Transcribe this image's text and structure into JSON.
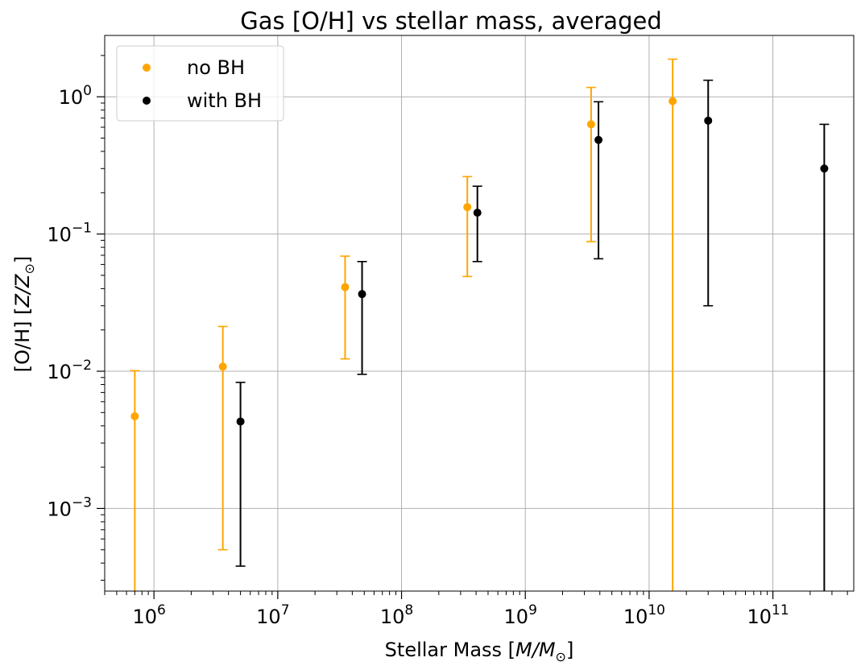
{
  "chart_data": {
    "type": "scatter",
    "title": "Gas [O/H] vs stellar mass, averaged",
    "xlabel": {
      "prefix": "Stellar Mass [",
      "var": "M/M",
      "sub": "⊙",
      "suffix": "]"
    },
    "ylabel": {
      "prefix": "[O/H] [",
      "var": "Z/Z",
      "sub": "⊙",
      "suffix": "]"
    },
    "xscale": "log",
    "yscale": "log",
    "xlim": [
      400000,
      450000000000
    ],
    "ylim": [
      0.00025,
      2.8
    ],
    "x_ticks": [
      {
        "value": 1000000,
        "base": "10",
        "exp": "6"
      },
      {
        "value": 10000000,
        "base": "10",
        "exp": "7"
      },
      {
        "value": 100000000,
        "base": "10",
        "exp": "8"
      },
      {
        "value": 1000000000,
        "base": "10",
        "exp": "9"
      },
      {
        "value": 10000000000,
        "base": "10",
        "exp": "10"
      },
      {
        "value": 100000000000,
        "base": "10",
        "exp": "11"
      }
    ],
    "y_ticks": [
      {
        "value": 0.001,
        "base": "10",
        "exp": "−3"
      },
      {
        "value": 0.01,
        "base": "10",
        "exp": "−2"
      },
      {
        "value": 0.1,
        "base": "10",
        "exp": "−1"
      },
      {
        "value": 1,
        "base": "10",
        "exp": "0"
      }
    ],
    "grid": true,
    "legend": "top-left",
    "series": [
      {
        "name": "no BH",
        "color": "#ffa500",
        "points": [
          {
            "x": 700000,
            "y": 0.0047,
            "ylow": 0.0001,
            "yhigh": 0.0101
          },
          {
            "x": 3600000,
            "y": 0.0108,
            "ylow": 0.0005,
            "yhigh": 0.0212
          },
          {
            "x": 35000000,
            "y": 0.041,
            "ylow": 0.0123,
            "yhigh": 0.069
          },
          {
            "x": 340000000,
            "y": 0.157,
            "ylow": 0.049,
            "yhigh": 0.262
          },
          {
            "x": 3400000000,
            "y": 0.63,
            "ylow": 0.088,
            "yhigh": 1.17
          },
          {
            "x": 15500000000,
            "y": 0.93,
            "ylow": 0.0001,
            "yhigh": 1.88
          }
        ]
      },
      {
        "name": "with BH",
        "color": "#000000",
        "points": [
          {
            "x": 5000000,
            "y": 0.0043,
            "ylow": 0.00038,
            "yhigh": 0.0083
          },
          {
            "x": 48000000,
            "y": 0.0365,
            "ylow": 0.0095,
            "yhigh": 0.063
          },
          {
            "x": 410000000,
            "y": 0.143,
            "ylow": 0.063,
            "yhigh": 0.223
          },
          {
            "x": 3900000000,
            "y": 0.485,
            "ylow": 0.066,
            "yhigh": 0.92
          },
          {
            "x": 30000000000,
            "y": 0.67,
            "ylow": 0.03,
            "yhigh": 1.32
          },
          {
            "x": 260000000000,
            "y": 0.3,
            "ylow": 0.0001,
            "yhigh": 0.63
          }
        ]
      }
    ]
  }
}
